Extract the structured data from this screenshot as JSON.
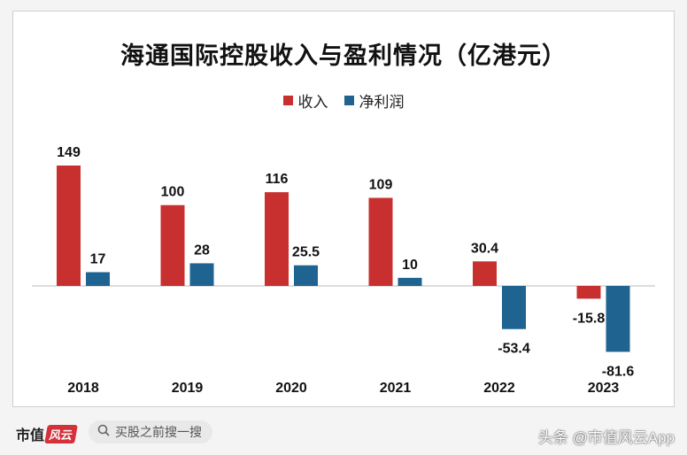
{
  "chart_data": {
    "type": "bar",
    "title": "海通国际控股收入与盈利情况（亿港元）",
    "categories": [
      "2018",
      "2019",
      "2020",
      "2021",
      "2022",
      "2023"
    ],
    "series": [
      {
        "name": "收入",
        "values": [
          149,
          100,
          116,
          109,
          30.4,
          -15.8
        ],
        "labels": [
          "149",
          "100",
          "116",
          "109",
          "30.4",
          "-15.8"
        ],
        "color": "#c8302f"
      },
      {
        "name": "净利润",
        "values": [
          17,
          28,
          25.5,
          10,
          -53.4,
          -81.6
        ],
        "labels": [
          "17",
          "28",
          "25.5",
          "10",
          "-53.4",
          "-81.6"
        ],
        "color": "#1f6391"
      }
    ],
    "legend": "top-center",
    "grid": false
  },
  "footer": {
    "brand": "市值",
    "brand_badge": "风云",
    "search_placeholder": "买股之前搜一搜",
    "watermark": "头条 @市值风云App"
  },
  "icons": {
    "search": "search-icon"
  }
}
